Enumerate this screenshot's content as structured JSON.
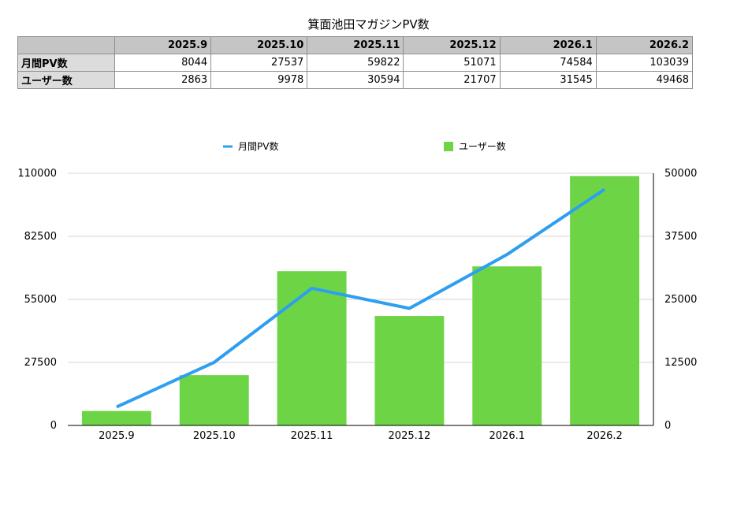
{
  "title": "箕面池田マガジンPV数",
  "table": {
    "columns": [
      "2025.9",
      "2025.10",
      "2025.11",
      "2025.12",
      "2026.1",
      "2026.2"
    ],
    "rows": [
      {
        "label": "月間PV数",
        "values": [
          "8044",
          "27537",
          "59822",
          "51071",
          "74584",
          "103039"
        ]
      },
      {
        "label": "ユーザー数",
        "values": [
          "2863",
          "9978",
          "30594",
          "21707",
          "31545",
          "49468"
        ]
      }
    ]
  },
  "chart_data": {
    "type": "bar",
    "categories": [
      "2025.9",
      "2025.10",
      "2025.11",
      "2025.12",
      "2026.1",
      "2026.2"
    ],
    "series": [
      {
        "name": "月間PV数",
        "type": "line",
        "axis": "left",
        "color": "#2e9ff0",
        "values": [
          8044,
          27537,
          59822,
          51071,
          74584,
          103039
        ]
      },
      {
        "name": "ユーザー数",
        "type": "bar",
        "axis": "right",
        "color": "#6dd545",
        "values": [
          2863,
          9978,
          30594,
          21707,
          31545,
          49468
        ]
      }
    ],
    "y_left": {
      "min": 0,
      "max": 110000,
      "ticks": [
        "0",
        "27500",
        "55000",
        "82500",
        "110000"
      ]
    },
    "y_right": {
      "min": 0,
      "max": 50000,
      "ticks": [
        "0",
        "12500",
        "25000",
        "37500",
        "50000"
      ]
    },
    "grid": true,
    "legend_position": "top"
  }
}
